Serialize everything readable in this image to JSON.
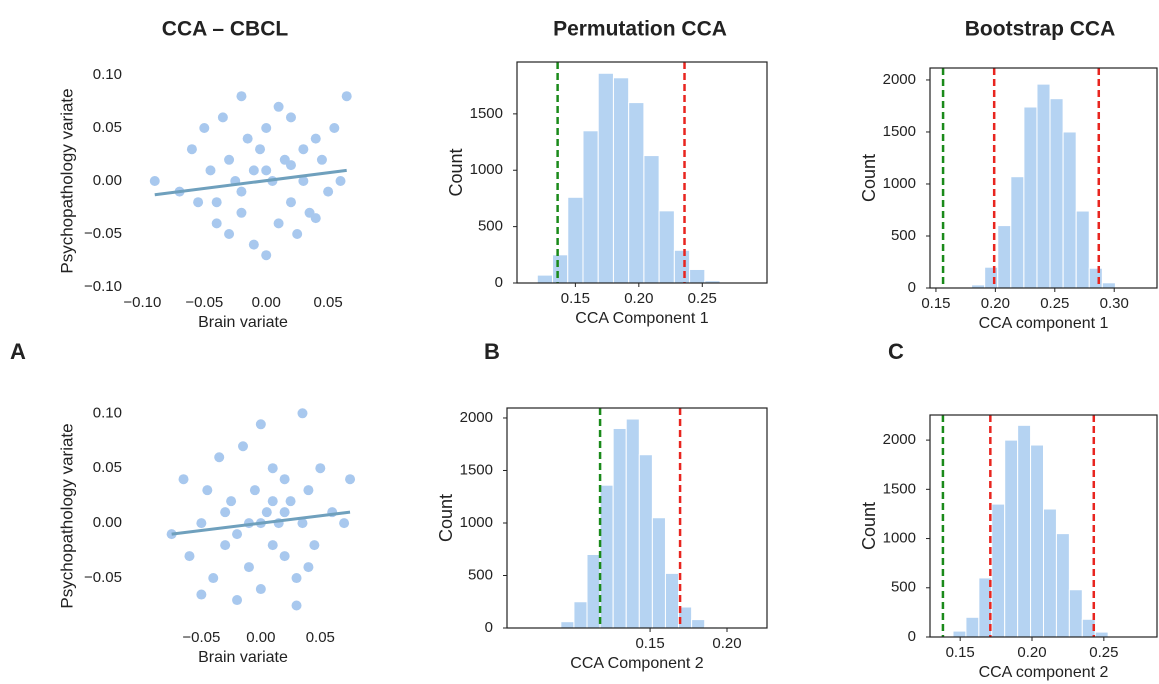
{
  "column_titles": [
    "CCA – CBCL",
    "Permutation CCA",
    "Bootstrap CCA"
  ],
  "panel_labels": [
    "A",
    "B",
    "C"
  ],
  "chart_data": [
    {
      "type": "scatter",
      "xlabel": "Brain variate",
      "ylabel": "Psychopathology variate",
      "color": "#a8c8ee",
      "x": [
        -0.09,
        -0.07,
        -0.06,
        -0.055,
        -0.05,
        -0.045,
        -0.04,
        -0.035,
        -0.03,
        -0.03,
        -0.025,
        -0.02,
        -0.02,
        -0.015,
        -0.01,
        -0.01,
        -0.005,
        0,
        0,
        0.005,
        0.01,
        0.01,
        0.015,
        0.02,
        0.02,
        0.025,
        0.03,
        0.03,
        0.035,
        0.04,
        0.045,
        0.05,
        0.055,
        0.06,
        0.065,
        -0.04,
        -0.02,
        0.0,
        0.02,
        0.04
      ],
      "y": [
        0.0,
        -0.01,
        0.03,
        -0.02,
        0.05,
        0.01,
        -0.04,
        0.06,
        0.02,
        -0.05,
        0.0,
        0.08,
        -0.03,
        0.04,
        -0.06,
        0.01,
        0.03,
        -0.07,
        0.05,
        0.0,
        -0.04,
        0.07,
        0.02,
        -0.02,
        0.06,
        -0.05,
        0.03,
        0.0,
        -0.03,
        0.04,
        0.02,
        -0.01,
        0.05,
        0.0,
        0.08,
        -0.02,
        -0.01,
        0.01,
        0.015,
        -0.035
      ],
      "trend": {
        "x": [
          -0.09,
          0.065
        ],
        "y": [
          -0.013,
          0.01
        ],
        "color": "#6fa0bd"
      },
      "xlim": [
        -0.11,
        0.0725
      ],
      "ylim": [
        -0.1,
        0.1
      ],
      "xticks": [
        {
          "value": -0.1,
          "label": "−0.10"
        },
        {
          "value": -0.05,
          "label": "−0.05"
        },
        {
          "value": 0,
          "label": "0.00"
        },
        {
          "value": 0.05,
          "label": "0.05"
        }
      ],
      "yticks": [
        {
          "value": 0.1,
          "label": "0.10"
        },
        {
          "value": 0.05,
          "label": "0.05"
        },
        {
          "value": 0,
          "label": "0.00"
        },
        {
          "value": -0.05,
          "label": "−0.05"
        },
        {
          "value": -0.1,
          "label": "−0.10"
        }
      ]
    },
    {
      "type": "histogram",
      "xlabel": "CCA Component 1",
      "ylabel": "Count",
      "color": "#b5d3f2",
      "frame": true,
      "bins": [
        0.12,
        0.132,
        0.144,
        0.156,
        0.168,
        0.18,
        0.192,
        0.204,
        0.216,
        0.228,
        0.24,
        0.252,
        0.264
      ],
      "values": [
        70,
        250,
        760,
        1350,
        1860,
        1820,
        1600,
        1130,
        640,
        290,
        120,
        20
      ],
      "vlines": [
        {
          "x": 0.136,
          "color": "#1a8a1a"
        },
        {
          "x": 0.236,
          "color": "#e8251f"
        }
      ],
      "xlim": [
        0.104,
        0.301
      ],
      "ylim": [
        0,
        1960
      ],
      "xticks": [
        0.15,
        {
          "value": 0.2,
          "label": "0.20"
        },
        0.25
      ],
      "yticks": [
        0,
        500,
        1000,
        1500
      ]
    },
    {
      "type": "histogram",
      "xlabel": "CCA component 1",
      "ylabel": "Count",
      "color": "#b5d3f2",
      "frame": true,
      "bins": [
        0.18,
        0.191,
        0.202,
        0.213,
        0.224,
        0.235,
        0.246,
        0.257,
        0.268,
        0.279,
        0.29,
        0.301
      ],
      "values": [
        30,
        200,
        600,
        1070,
        1740,
        1960,
        1820,
        1500,
        740,
        190,
        50
      ],
      "vlines": [
        {
          "x": 0.156,
          "color": "#1a8a1a"
        },
        {
          "x": 0.199,
          "color": "#e8251f"
        },
        {
          "x": 0.287,
          "color": "#e8251f"
        }
      ],
      "xlim": [
        0.145,
        0.336
      ],
      "ylim": [
        0,
        2115
      ],
      "xticks": [
        0.15,
        {
          "value": 0.2,
          "label": "0.20"
        },
        0.25,
        {
          "value": 0.3,
          "label": "0.30"
        }
      ],
      "yticks": [
        0,
        500,
        1000,
        1500,
        2000
      ]
    },
    {
      "type": "scatter",
      "xlabel": "Brain variate",
      "ylabel": "Psychopathology variate",
      "color": "#a8c8ee",
      "x": [
        -0.075,
        -0.065,
        -0.06,
        -0.05,
        -0.045,
        -0.04,
        -0.035,
        -0.03,
        -0.025,
        -0.02,
        -0.015,
        -0.01,
        -0.01,
        -0.005,
        0,
        0,
        0.005,
        0.01,
        0.01,
        0.015,
        0.02,
        0.02,
        0.025,
        0.03,
        0.035,
        0.035,
        0.04,
        0.045,
        0.05,
        0.06,
        0.07,
        0.075,
        -0.03,
        -0.02,
        0.0,
        0.02,
        0.03,
        -0.05,
        0.01,
        0.04
      ],
      "y": [
        -0.01,
        0.04,
        -0.03,
        0.0,
        0.03,
        -0.05,
        0.06,
        -0.02,
        0.02,
        -0.07,
        0.07,
        0.0,
        -0.04,
        0.03,
        0.09,
        -0.06,
        0.01,
        -0.02,
        0.05,
        0.0,
        0.04,
        -0.03,
        0.02,
        -0.05,
        0.1,
        0.0,
        0.03,
        -0.02,
        0.05,
        0.01,
        0.0,
        0.04,
        0.01,
        -0.01,
        0.0,
        0.01,
        -0.075,
        -0.065,
        0.02,
        -0.04
      ],
      "trend": {
        "x": [
          -0.075,
          0.075
        ],
        "y": [
          -0.01,
          0.01
        ],
        "color": "#6fa0bd"
      },
      "xlim": [
        -0.11,
        0.08
      ],
      "ylim": [
        -0.09,
        0.103
      ],
      "xticks": [
        {
          "value": -0.05,
          "label": "−0.05"
        },
        {
          "value": 0,
          "label": "0.00"
        },
        {
          "value": 0.05,
          "label": "0.05"
        }
      ],
      "yticks": [
        {
          "value": 0.1,
          "label": "0.10"
        },
        {
          "value": 0.05,
          "label": "0.05"
        },
        {
          "value": 0,
          "label": "0.00"
        },
        {
          "value": -0.05,
          "label": "−0.05"
        }
      ]
    },
    {
      "type": "histogram",
      "xlabel": "CCA Component 2",
      "ylabel": "Count",
      "color": "#b5d3f2",
      "frame": true,
      "bins": [
        0.092,
        0.1005,
        0.109,
        0.1175,
        0.126,
        0.1345,
        0.143,
        0.1515,
        0.16,
        0.1685,
        0.177,
        0.1855,
        0.194
      ],
      "values": [
        60,
        250,
        700,
        1360,
        1900,
        1990,
        1650,
        1050,
        520,
        200,
        80,
        10
      ],
      "vlines": [
        {
          "x": 0.1175,
          "color": "#1a8a1a"
        },
        {
          "x": 0.1695,
          "color": "#e8251f"
        }
      ],
      "xlim": [
        0.057,
        0.226
      ],
      "ylim": [
        0,
        2095
      ],
      "xticks": [
        0.15,
        {
          "value": 0.2,
          "label": "0.20"
        }
      ],
      "yticks": [
        0,
        500,
        1000,
        1500,
        2000
      ]
    },
    {
      "type": "histogram",
      "xlabel": "CCA component 2",
      "ylabel": "Count",
      "color": "#b5d3f2",
      "frame": true,
      "bins": [
        0.136,
        0.145,
        0.154,
        0.163,
        0.172,
        0.181,
        0.19,
        0.199,
        0.208,
        0.217,
        0.226,
        0.235,
        0.244,
        0.253
      ],
      "values": [
        10,
        60,
        200,
        600,
        1350,
        2000,
        2150,
        1950,
        1300,
        1050,
        480,
        180,
        50
      ],
      "vlines": [
        {
          "x": 0.138,
          "color": "#1a8a1a"
        },
        {
          "x": 0.171,
          "color": "#e8251f"
        },
        {
          "x": 0.243,
          "color": "#e8251f"
        }
      ],
      "xlim": [
        0.129,
        0.287
      ],
      "ylim": [
        0,
        2255
      ],
      "xticks": [
        0.15,
        {
          "value": 0.2,
          "label": "0.20"
        },
        0.25
      ],
      "yticks": [
        0,
        500,
        1000,
        1500,
        2000
      ]
    }
  ]
}
